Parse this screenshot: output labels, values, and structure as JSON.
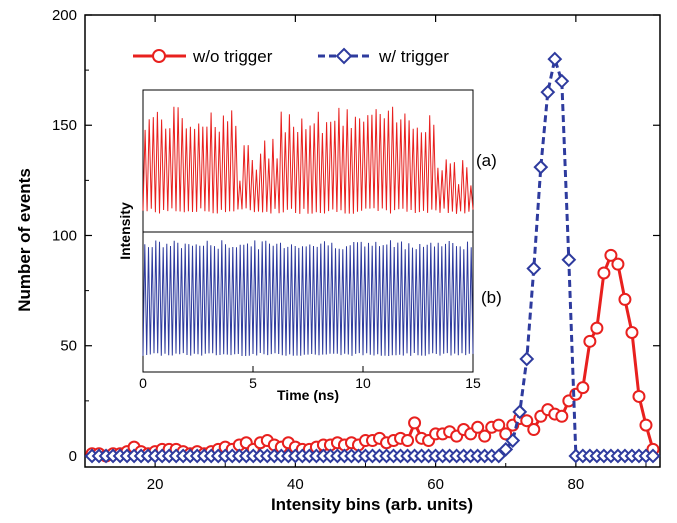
{
  "chart_data": {
    "type": "line",
    "title": "",
    "xlabel": "Intensity bins (arb. units)",
    "ylabel": "Number of events",
    "xlim": [
      10,
      92
    ],
    "ylim": [
      -5,
      200
    ],
    "xticks": [
      "20",
      "40",
      "60",
      "80"
    ],
    "yticks": [
      "0",
      "50",
      "100",
      "150",
      "200"
    ],
    "legend_position": "top-left",
    "series": [
      {
        "name": "w/o trigger",
        "color": "#e8201e",
        "marker": "circle",
        "line": "solid",
        "x": [
          11,
          12,
          13,
          14,
          15,
          16,
          17,
          18,
          19,
          20,
          21,
          22,
          23,
          24,
          25,
          26,
          27,
          28,
          29,
          30,
          31,
          32,
          33,
          34,
          35,
          36,
          37,
          38,
          39,
          40,
          41,
          42,
          43,
          44,
          45,
          46,
          47,
          48,
          49,
          50,
          51,
          52,
          53,
          54,
          55,
          56,
          57,
          58,
          59,
          60,
          61,
          62,
          63,
          64,
          65,
          66,
          67,
          68,
          69,
          70,
          71,
          72,
          73,
          74,
          75,
          76,
          77,
          78,
          79,
          80,
          81,
          82,
          83,
          84,
          85,
          86,
          87,
          88,
          89,
          90,
          91
        ],
        "y": [
          1,
          1,
          0,
          1,
          1,
          2,
          4,
          2,
          1,
          2,
          3,
          3,
          3,
          2,
          1,
          2,
          1,
          2,
          3,
          4,
          3,
          5,
          6,
          3,
          6,
          7,
          5,
          4,
          6,
          4,
          3,
          3,
          4,
          5,
          5,
          6,
          5,
          6,
          5,
          7,
          7,
          8,
          6,
          7,
          8,
          7,
          15,
          8,
          7,
          10,
          10,
          11,
          9,
          12,
          10,
          13,
          9,
          13,
          14,
          10,
          14,
          17,
          16,
          12,
          18,
          21,
          19,
          18,
          25,
          28,
          31,
          52,
          58,
          83,
          91,
          87,
          71,
          56,
          27,
          14,
          3
        ]
      },
      {
        "name": "w/ trigger",
        "color": "#2e3b9e",
        "marker": "diamond",
        "line": "dashed",
        "x": [
          11,
          12,
          13,
          14,
          15,
          16,
          17,
          18,
          19,
          20,
          21,
          22,
          23,
          24,
          25,
          26,
          27,
          28,
          29,
          30,
          31,
          32,
          33,
          34,
          35,
          36,
          37,
          38,
          39,
          40,
          41,
          42,
          43,
          44,
          45,
          46,
          47,
          48,
          49,
          50,
          51,
          52,
          53,
          54,
          55,
          56,
          57,
          58,
          59,
          60,
          61,
          62,
          63,
          64,
          65,
          66,
          67,
          68,
          69,
          70,
          71,
          72,
          73,
          74,
          75,
          76,
          77,
          78,
          79,
          80,
          81,
          82,
          83,
          84,
          85,
          86,
          87,
          88,
          89,
          90,
          91
        ],
        "y": [
          0,
          0,
          0,
          0,
          0,
          0,
          0,
          0,
          0,
          0,
          0,
          0,
          0,
          0,
          0,
          0,
          0,
          0,
          0,
          0,
          0,
          0,
          0,
          0,
          0,
          0,
          0,
          0,
          0,
          0,
          0,
          0,
          0,
          0,
          0,
          0,
          0,
          0,
          0,
          0,
          0,
          0,
          0,
          0,
          0,
          0,
          0,
          0,
          0,
          0,
          0,
          0,
          0,
          0,
          0,
          0,
          0,
          0,
          0,
          3,
          7,
          20,
          44,
          85,
          131,
          165,
          180,
          170,
          89,
          0,
          0,
          0,
          0,
          0,
          0,
          0,
          0,
          0,
          0,
          0,
          0
        ]
      }
    ],
    "inset": {
      "type": "line",
      "xlabel": "Time (ns)",
      "ylabel": "Intensity",
      "xlim": [
        0,
        15
      ],
      "xticks": [
        "0",
        "5",
        "10",
        "15"
      ],
      "panels": [
        {
          "label": "(a)",
          "color": "#e8201e",
          "style": "irregular pulsations"
        },
        {
          "label": "(b)",
          "color": "#2e3b9e",
          "style": "regular pulsations"
        }
      ]
    }
  }
}
